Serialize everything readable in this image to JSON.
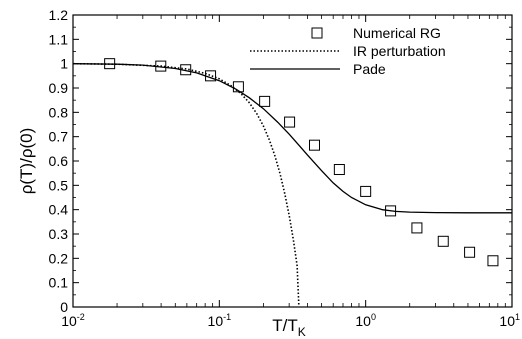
{
  "chart_data": {
    "type": "line",
    "xscale": "log",
    "xlim": [
      0.01,
      10
    ],
    "ylim": [
      0,
      1.2
    ],
    "xlabel": "T/T_K",
    "xlabel_main": "T/T",
    "xlabel_sub": "K",
    "ylabel": "ρ(T)/ρ(0)",
    "x_ticks": [
      {
        "value": 0.01,
        "base": "10",
        "exp": "-2"
      },
      {
        "value": 0.1,
        "base": "10",
        "exp": "-1"
      },
      {
        "value": 1,
        "base": "10",
        "exp": "0"
      },
      {
        "value": 10,
        "base": "10",
        "exp": "1"
      }
    ],
    "y_ticks": [
      {
        "value": 0,
        "label": "0"
      },
      {
        "value": 0.1,
        "label": "0.1"
      },
      {
        "value": 0.2,
        "label": "0.2"
      },
      {
        "value": 0.3,
        "label": "0.3"
      },
      {
        "value": 0.4,
        "label": "0.4"
      },
      {
        "value": 0.5,
        "label": "0.5"
      },
      {
        "value": 0.6,
        "label": "0.6"
      },
      {
        "value": 0.7,
        "label": "0.7"
      },
      {
        "value": 0.8,
        "label": "0.8"
      },
      {
        "value": 0.9,
        "label": "0.9"
      },
      {
        "value": 1.0,
        "label": "1"
      },
      {
        "value": 1.1,
        "label": "1.1"
      },
      {
        "value": 1.2,
        "label": "1.2"
      }
    ],
    "legend_position": "top-right",
    "series": [
      {
        "name": "Numerical RG",
        "kind": "scatter",
        "marker": "open-square",
        "x": [
          0.0178,
          0.0398,
          0.0589,
          0.0871,
          0.135,
          0.204,
          0.302,
          0.447,
          0.661,
          1.0,
          1.48,
          2.24,
          3.39,
          5.13,
          7.41
        ],
        "y": [
          1.0,
          0.99,
          0.975,
          0.95,
          0.905,
          0.845,
          0.76,
          0.665,
          0.565,
          0.475,
          0.395,
          0.325,
          0.27,
          0.225,
          0.19
        ]
      },
      {
        "name": "IR perturbation",
        "kind": "line",
        "dash": "dotted",
        "x": [
          0.01,
          0.02,
          0.04,
          0.06,
          0.08,
          0.1,
          0.12,
          0.14,
          0.16,
          0.18,
          0.2,
          0.22,
          0.24,
          0.26,
          0.28,
          0.3,
          0.31,
          0.32,
          0.33,
          0.34,
          0.35
        ],
        "y": [
          1.0,
          0.998,
          0.99,
          0.978,
          0.96,
          0.938,
          0.91,
          0.878,
          0.84,
          0.795,
          0.744,
          0.686,
          0.62,
          0.547,
          0.465,
          0.376,
          0.328,
          0.278,
          0.225,
          0.17,
          0.0
        ]
      },
      {
        "name": "Pade",
        "kind": "line",
        "dash": "solid",
        "x": [
          0.01,
          0.02,
          0.03,
          0.05,
          0.07,
          0.1,
          0.13,
          0.16,
          0.2,
          0.25,
          0.3,
          0.35,
          0.4,
          0.5,
          0.6,
          0.7,
          0.8,
          1.0,
          1.3,
          1.6,
          2.0,
          3.0,
          5.0,
          7.0,
          10.0
        ],
        "y": [
          1.0,
          0.998,
          0.994,
          0.98,
          0.962,
          0.93,
          0.895,
          0.86,
          0.815,
          0.76,
          0.71,
          0.665,
          0.625,
          0.56,
          0.51,
          0.475,
          0.45,
          0.42,
          0.4,
          0.393,
          0.39,
          0.388,
          0.387,
          0.387,
          0.387
        ]
      }
    ]
  }
}
